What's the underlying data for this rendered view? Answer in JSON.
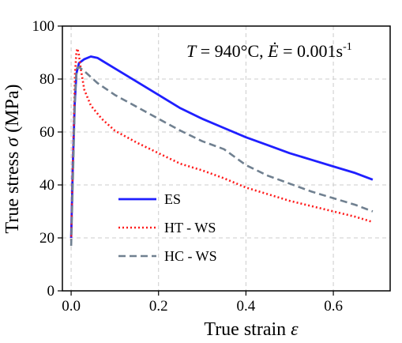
{
  "chart_data": {
    "type": "line",
    "xlabel": "True strain ε",
    "ylabel": "True stress σ (MPa)",
    "xlim": [
      -0.02,
      0.73
    ],
    "ylim": [
      0,
      100
    ],
    "x_ticks": [
      "0.0",
      "0.2",
      "0.4",
      "0.6"
    ],
    "y_ticks": [
      "0",
      "20",
      "40",
      "60",
      "80",
      "100"
    ],
    "grid": true,
    "legend_position": "lower-left",
    "annotation": "T = 940°C, Ė = 0.001s⁻¹",
    "series": [
      {
        "name": "ES",
        "color": "#1f1fff",
        "style": "solid",
        "points": [
          [
            0.0,
            20
          ],
          [
            0.004,
            48
          ],
          [
            0.008,
            70
          ],
          [
            0.012,
            82
          ],
          [
            0.018,
            86
          ],
          [
            0.03,
            87.5
          ],
          [
            0.045,
            88.5
          ],
          [
            0.06,
            88
          ],
          [
            0.1,
            84
          ],
          [
            0.15,
            79
          ],
          [
            0.2,
            74
          ],
          [
            0.25,
            69
          ],
          [
            0.3,
            65
          ],
          [
            0.35,
            61.5
          ],
          [
            0.4,
            58
          ],
          [
            0.45,
            55
          ],
          [
            0.5,
            52
          ],
          [
            0.55,
            49.5
          ],
          [
            0.6,
            47
          ],
          [
            0.65,
            44.5
          ],
          [
            0.69,
            42
          ]
        ]
      },
      {
        "name": "HT - WS",
        "color": "#ff1a1a",
        "style": "dotted",
        "points": [
          [
            0.0,
            19
          ],
          [
            0.005,
            55
          ],
          [
            0.009,
            82
          ],
          [
            0.012,
            90
          ],
          [
            0.014,
            91.5
          ],
          [
            0.017,
            90
          ],
          [
            0.022,
            84
          ],
          [
            0.03,
            76
          ],
          [
            0.045,
            70
          ],
          [
            0.07,
            65
          ],
          [
            0.1,
            60.5
          ],
          [
            0.15,
            56
          ],
          [
            0.2,
            52
          ],
          [
            0.25,
            48
          ],
          [
            0.3,
            45.5
          ],
          [
            0.35,
            42.5
          ],
          [
            0.4,
            39
          ],
          [
            0.45,
            36.5
          ],
          [
            0.5,
            34
          ],
          [
            0.55,
            32
          ],
          [
            0.6,
            30
          ],
          [
            0.65,
            28
          ],
          [
            0.69,
            26
          ]
        ]
      },
      {
        "name": "HC - WS",
        "color": "#708090",
        "style": "dashed",
        "points": [
          [
            0.0,
            17
          ],
          [
            0.005,
            48
          ],
          [
            0.009,
            74
          ],
          [
            0.013,
            84
          ],
          [
            0.018,
            84.5
          ],
          [
            0.03,
            83
          ],
          [
            0.06,
            78.5
          ],
          [
            0.1,
            74
          ],
          [
            0.15,
            69.5
          ],
          [
            0.2,
            65
          ],
          [
            0.25,
            60.5
          ],
          [
            0.3,
            56.5
          ],
          [
            0.35,
            53.5
          ],
          [
            0.4,
            47.5
          ],
          [
            0.45,
            43.5
          ],
          [
            0.5,
            40.5
          ],
          [
            0.55,
            37.5
          ],
          [
            0.6,
            35
          ],
          [
            0.65,
            32.5
          ],
          [
            0.69,
            30
          ]
        ]
      }
    ]
  }
}
